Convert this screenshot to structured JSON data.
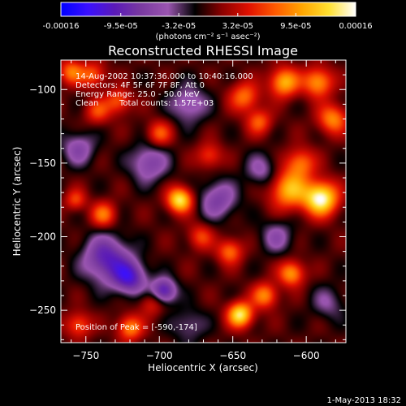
{
  "colorbar": {
    "tick_labels": [
      "-0.00016",
      "-9.5e-05",
      "-3.2e-05",
      "3.2e-05",
      "9.5e-05",
      "0.00016"
    ],
    "units": "(photons cm⁻² s⁻¹ asec⁻²)",
    "range": [
      -0.00016,
      0.00016
    ]
  },
  "annotations": {
    "line1": "14-Aug-2002 10:37:36.000 to 10:40:16.000",
    "line2": "Detectors: 4F 5F 6F 7F 8F, Att 0",
    "line3": "Energy Range: 25.0 - 50.0 keV",
    "line4_method": "Clean",
    "line4_counts": "Total counts: 1.57E+03",
    "peak": "Position of Peak = [-590,-174]"
  },
  "footer": {
    "timestamp": "1-May-2013 18:32"
  },
  "chart_data": {
    "type": "heatmap",
    "title": "Reconstructed RHESSI Image",
    "xlabel": "Heliocentric X (arcsec)",
    "ylabel": "Heliocentric Y (arcsec)",
    "xlim": [
      -767,
      -573
    ],
    "ylim": [
      -272,
      -80
    ],
    "x_ticks": [
      -750,
      -700,
      -650,
      -600
    ],
    "y_ticks": [
      -100,
      -150,
      -200,
      -250
    ],
    "x_tick_labels": [
      "−750",
      "−700",
      "−650",
      "−600"
    ],
    "y_tick_labels": [
      "−100",
      "−150",
      "−200",
      "−250"
    ],
    "colormap": [
      "#0000ff",
      "#3a10ff",
      "#5a1ab8",
      "#7a3aa0",
      "#9a55b0",
      "#000000",
      "#8a0000",
      "#e01000",
      "#ff5a00",
      "#ffa500",
      "#ffe030",
      "#ffffff"
    ],
    "peak": [
      -590,
      -174
    ],
    "sources": [
      {
        "x": -590,
        "y": -174,
        "amp": 0.00016,
        "sigma": 8
      },
      {
        "x": -612,
        "y": -168,
        "amp": 0.00011,
        "sigma": 9
      },
      {
        "x": -604,
        "y": -150,
        "amp": 8e-05,
        "sigma": 7
      },
      {
        "x": -615,
        "y": -95,
        "amp": 0.00011,
        "sigma": 7
      },
      {
        "x": -592,
        "y": -95,
        "amp": 0.0001,
        "sigma": 7
      },
      {
        "x": -582,
        "y": -120,
        "amp": 9e-05,
        "sigma": 7
      },
      {
        "x": -642,
        "y": -105,
        "amp": 8e-05,
        "sigma": 7
      },
      {
        "x": -632,
        "y": -122,
        "amp": 7e-05,
        "sigma": 6
      },
      {
        "x": -686,
        "y": -175,
        "amp": 0.00014,
        "sigma": 6
      },
      {
        "x": -645,
        "y": -253,
        "amp": 0.00014,
        "sigma": 6
      },
      {
        "x": -628,
        "y": -240,
        "amp": 9e-05,
        "sigma": 6
      },
      {
        "x": -610,
        "y": -225,
        "amp": 0.0001,
        "sigma": 6
      },
      {
        "x": -652,
        "y": -210,
        "amp": 8e-05,
        "sigma": 6
      },
      {
        "x": -672,
        "y": -200,
        "amp": 6e-05,
        "sigma": 6
      },
      {
        "x": -700,
        "y": -130,
        "amp": 7e-05,
        "sigma": 6
      },
      {
        "x": -738,
        "y": -185,
        "amp": 8e-05,
        "sigma": 6
      },
      {
        "x": -757,
        "y": -175,
        "amp": 6e-05,
        "sigma": 5
      },
      {
        "x": -760,
        "y": -88,
        "amp": 8e-05,
        "sigma": 6
      },
      {
        "x": -745,
        "y": -90,
        "amp": 7e-05,
        "sigma": 6
      },
      {
        "x": -728,
        "y": -108,
        "amp": 7e-05,
        "sigma": 6
      },
      {
        "x": -742,
        "y": -115,
        "amp": 6e-05,
        "sigma": 6
      },
      {
        "x": -755,
        "y": -260,
        "amp": 7e-05,
        "sigma": 6
      },
      {
        "x": -720,
        "y": -262,
        "amp": 9e-05,
        "sigma": 6
      },
      {
        "x": -705,
        "y": -245,
        "amp": 5e-05,
        "sigma": 6
      },
      {
        "x": -666,
        "y": -145,
        "amp": 6e-05,
        "sigma": 6
      },
      {
        "x": -707,
        "y": -150,
        "amp": -7e-05,
        "sigma": 9
      },
      {
        "x": -736,
        "y": -215,
        "amp": -0.0001,
        "sigma": 11
      },
      {
        "x": -720,
        "y": -228,
        "amp": -0.0001,
        "sigma": 8
      },
      {
        "x": -697,
        "y": -237,
        "amp": -0.00011,
        "sigma": 6
      },
      {
        "x": -660,
        "y": -175,
        "amp": -7e-05,
        "sigma": 9
      },
      {
        "x": -755,
        "y": -140,
        "amp": -6e-05,
        "sigma": 8
      },
      {
        "x": -630,
        "y": -155,
        "amp": -5e-05,
        "sigma": 8
      },
      {
        "x": -680,
        "y": -110,
        "amp": -6e-05,
        "sigma": 9
      },
      {
        "x": -620,
        "y": -200,
        "amp": -5e-05,
        "sigma": 8
      },
      {
        "x": -680,
        "y": -260,
        "amp": -4e-05,
        "sigma": 8
      },
      {
        "x": -585,
        "y": -245,
        "amp": -4e-05,
        "sigma": 8
      }
    ]
  }
}
